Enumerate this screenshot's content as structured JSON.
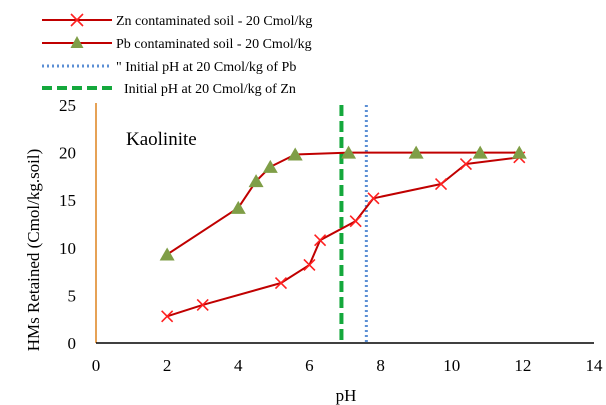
{
  "chart_data": {
    "type": "line",
    "title": "",
    "annotation": "Kaolinite",
    "xlabel": "pH",
    "ylabel": "HMs Retained (Cmol/kg.soil)",
    "xlim": [
      0,
      14
    ],
    "ylim": [
      0,
      25
    ],
    "x_ticks": [
      0,
      2,
      4,
      6,
      8,
      10,
      12,
      14
    ],
    "y_ticks": [
      0,
      5,
      10,
      15,
      20,
      25
    ],
    "grid": false,
    "legend_position": "top-left",
    "colors": {
      "series": "#c00000",
      "pb_marker": "#7f9e47",
      "pb_vline": "#5b8fd4",
      "zn_vline": "#14a83c",
      "y_axis": "#e08a2c",
      "x_axis": "#000000"
    },
    "series": [
      {
        "name": "Zn contaminated soil - 20 Cmol/kg",
        "marker": "x",
        "x": [
          2.0,
          3.0,
          5.2,
          6.0,
          6.3,
          7.3,
          7.8,
          9.7,
          10.4,
          11.9
        ],
        "y": [
          2.8,
          4.0,
          6.3,
          8.2,
          10.8,
          12.8,
          15.2,
          16.7,
          18.8,
          19.5
        ]
      },
      {
        "name": "Pb contaminated soil - 20 Cmol/kg",
        "marker": "triangle",
        "x": [
          2.0,
          4.0,
          4.5,
          4.9,
          5.6,
          7.1,
          9.0,
          10.8,
          11.9
        ],
        "y": [
          9.3,
          14.2,
          17.0,
          18.5,
          19.8,
          20.0,
          20.0,
          20.0,
          20.0
        ]
      }
    ],
    "vertical_lines": [
      {
        "name": "\" Initial pH at 20 Cmol/kg of Pb",
        "x": 7.6,
        "style": "dotted"
      },
      {
        "name": "Initial pH at 20 Cmol/kg of Zn",
        "x": 6.9,
        "style": "dashed"
      }
    ]
  }
}
